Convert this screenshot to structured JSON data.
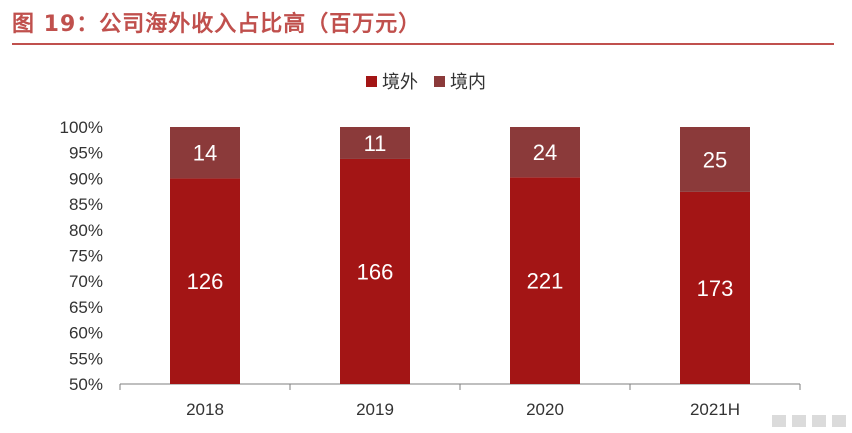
{
  "figure": {
    "title": "图 19：公司海外收入占比高（百万元）"
  },
  "chart_data": {
    "type": "bar",
    "stacked": "percent",
    "categories": [
      "2018",
      "2019",
      "2020",
      "2021H"
    ],
    "series": [
      {
        "name": "境外",
        "values": [
          126,
          166,
          221,
          173
        ],
        "color": "#a31515"
      },
      {
        "name": "境内",
        "values": [
          14,
          11,
          24,
          25
        ],
        "color": "#8b3a3a"
      }
    ],
    "ylim": [
      50,
      100
    ],
    "yticks": [
      "50%",
      "55%",
      "60%",
      "65%",
      "70%",
      "75%",
      "80%",
      "85%",
      "90%",
      "95%",
      "100%"
    ],
    "legend_position": "top-center",
    "grid": false,
    "xlabel": "",
    "ylabel": ""
  }
}
